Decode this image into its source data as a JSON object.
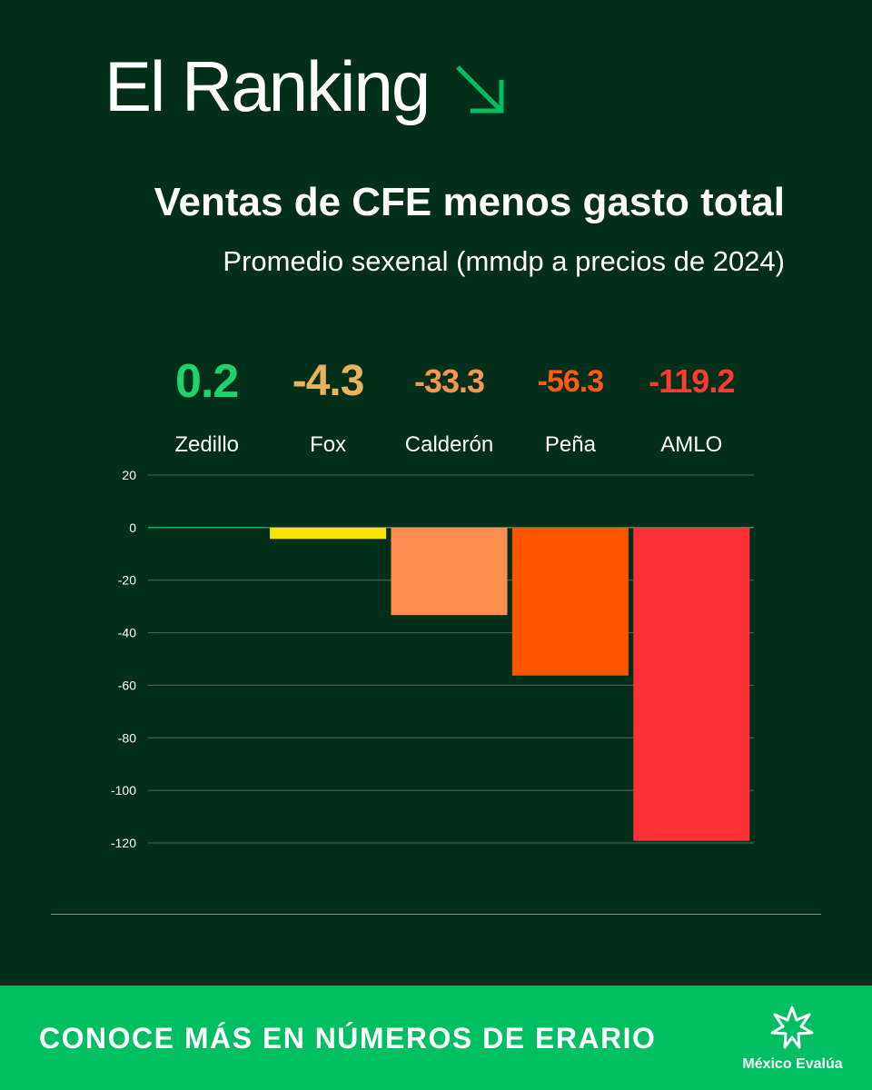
{
  "header": {
    "title": "El Ranking"
  },
  "chart_data": {
    "type": "bar",
    "title": "Ventas de CFE menos gasto total",
    "subtitle": "Promedio sexenal (mmdp a precios de 2024)",
    "categories": [
      "Zedillo",
      "Fox",
      "Calderón",
      "Peña",
      "AMLO"
    ],
    "values": [
      0.2,
      -4.3,
      -33.3,
      -56.3,
      -119.2
    ],
    "value_labels": [
      "0.2",
      "-4.3",
      "-33.3",
      "-56.3",
      "-119.2"
    ],
    "label_colors": [
      "#1ed26d",
      "#e9b25c",
      "#f79552",
      "#ff5a13",
      "#ff3a33"
    ],
    "bar_colors": [
      "#1ed26d",
      "#f5e400",
      "#ff8d4d",
      "#ff5500",
      "#ff3035"
    ],
    "ylim": [
      -120,
      20
    ],
    "yticks": [
      20,
      0,
      -20,
      -40,
      -60,
      -80,
      -100,
      -120
    ],
    "grid": true,
    "xlabel": "",
    "ylabel": ""
  },
  "footer": {
    "cta": "CONOCE MÁS EN NÚMEROS DE ERARIO",
    "brand": "México Evalúa"
  }
}
